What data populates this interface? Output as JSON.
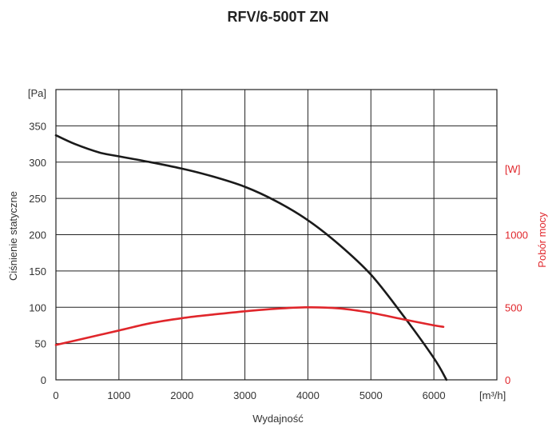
{
  "chart_data": {
    "type": "line",
    "title": "RFV/6-500T ZN",
    "xlabel": "Wydajność",
    "x_unit": "[m³/h]",
    "ylabel_left": "Ciśnienie statyczne",
    "y_unit_left": "[Pa]",
    "ylabel_right": "Pobór mocy",
    "y_unit_right": "[W]",
    "xlim": [
      0,
      7000
    ],
    "ylim_left": [
      0,
      400
    ],
    "ylim_right": [
      0,
      2000
    ],
    "grid": true,
    "x_ticks": [
      0,
      1000,
      2000,
      3000,
      4000,
      5000,
      6000
    ],
    "y_ticks_left": [
      0,
      50,
      100,
      150,
      200,
      250,
      300,
      350
    ],
    "y_ticks_right": [
      0,
      500,
      1000
    ],
    "colors": {
      "pressure": "#1a1a1a",
      "power": "#e0262b",
      "grid": "#222222"
    },
    "series": [
      {
        "axis": "left",
        "x": [
          0,
          300,
          700,
          1000,
          1500,
          2000,
          2500,
          3000,
          3500,
          4000,
          4500,
          5000,
          5500,
          6000,
          6200
        ],
        "values": [
          337,
          325,
          313,
          308,
          300,
          291,
          280,
          266,
          246,
          220,
          186,
          145,
          90,
          30,
          0
        ]
      },
      {
        "axis": "right",
        "x": [
          0,
          500,
          1000,
          1500,
          2000,
          2500,
          3000,
          3500,
          4000,
          4500,
          5000,
          5500,
          6000,
          6150
        ],
        "values": [
          240,
          290,
          340,
          390,
          425,
          450,
          472,
          490,
          500,
          492,
          462,
          418,
          375,
          365
        ]
      }
    ]
  }
}
